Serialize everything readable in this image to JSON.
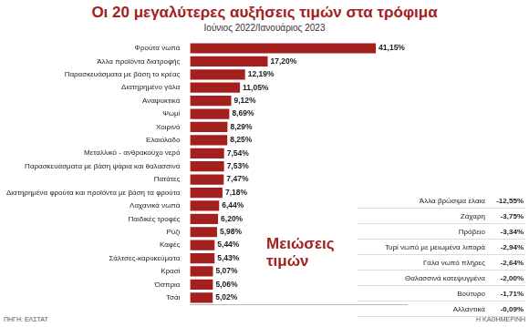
{
  "chart_data": {
    "type": "bar",
    "title": "Οι 20 μεγαλύτερες αυξήσεις τιμών στα τρόφιμα",
    "subtitle": "Ιούνιος 2022/Ιανουάριος 2023",
    "orientation": "horizontal",
    "categories": [
      "Φρούτα νωπά",
      "Άλλα προϊόντα διατροφής",
      "Παρασκευάσματα με βάση το κρέας",
      "Διατηρημένο γάλα",
      "Αναψυκτικά",
      "Ψωμί",
      "Χοιρινό",
      "Ελαιόλαδο",
      "Μεταλλικό - ανθρακούχο νερό",
      "Παρασκευάσματα με βάση ψάρια και θαλασσινά",
      "Πατάτες",
      "Διατηρημένα φρούτα και προϊόντα με βάση τα φρούτα",
      "Λαχανικά νωπά",
      "Παιδικές τροφές",
      "Ρύζι",
      "Καφές",
      "Σάλτσες-καρυκεύματα",
      "Κρασί",
      "Όσπρια",
      "Τσάι"
    ],
    "values": [
      41.15,
      17.2,
      12.19,
      11.05,
      9.12,
      8.69,
      8.29,
      8.25,
      7.54,
      7.53,
      7.47,
      7.18,
      6.44,
      6.2,
      5.98,
      5.44,
      5.43,
      5.07,
      5.06,
      5.02
    ],
    "value_labels": [
      "41,15%",
      "17,20%",
      "12,19%",
      "11,05%",
      "9,12%",
      "8,69%",
      "8,29%",
      "8,25%",
      "7,54%",
      "7,53%",
      "7,47%",
      "7,18%",
      "6,44%",
      "6,20%",
      "5,98%",
      "5,44%",
      "5,43%",
      "5,07%",
      "5,06%",
      "5,02%"
    ],
    "color": "#a3201f",
    "xlim": [
      0,
      48
    ],
    "grid": false,
    "data_labels": true,
    "tick_labels": "y"
  },
  "decreases": {
    "title": "Μειώσεις τιμών",
    "rows": [
      {
        "label": "Άλλα βρώσιμα έλαια",
        "value": "-12,55%"
      },
      {
        "label": "Ζάχαρη",
        "value": "-3,75%"
      },
      {
        "label": "Πρόβειο",
        "value": "-3,34%"
      },
      {
        "label": "Τυρί νωπό με μειωμένα λιπαρά",
        "value": "-2,94%"
      },
      {
        "label": "Γάλα νωπό πλήρες",
        "value": "-2,64%"
      },
      {
        "label": "Θαλασσινά κατεψυγμένα",
        "value": "-2,00%"
      },
      {
        "label": "Βούτυρο",
        "value": "-1,71%"
      },
      {
        "label": "Αλλαντικά",
        "value": "-0,09%"
      }
    ]
  },
  "source": "ΠΗΓΗ: ΕΛΣΤΑΤ",
  "publisher": "Η ΚΑΘΗΜΕΡΙΝΗ"
}
